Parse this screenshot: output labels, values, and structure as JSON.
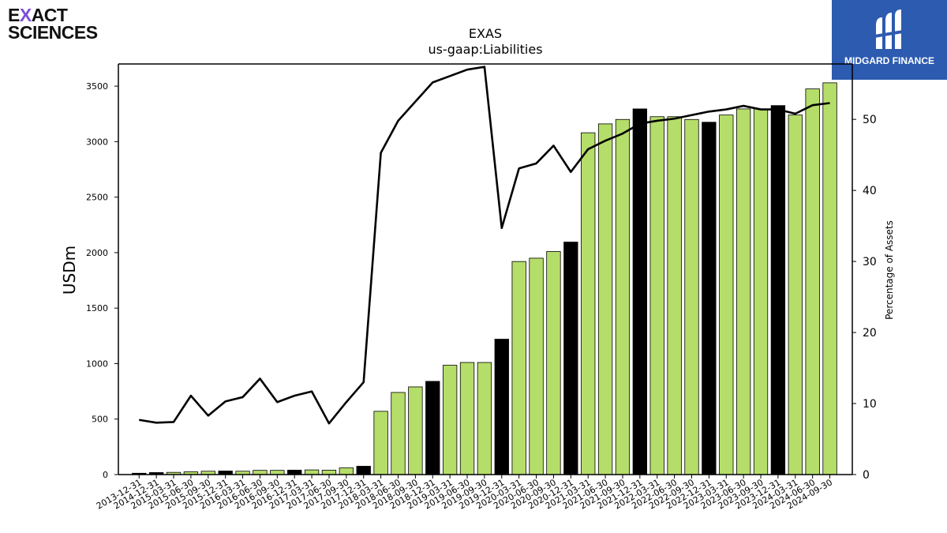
{
  "company_logo": {
    "line1_pre": "E",
    "line1_x": "X",
    "line1_post": "ACT",
    "line2": "SCIENCES"
  },
  "brand_logo": {
    "text": "MIDGARD FINANCE"
  },
  "colors": {
    "bar_green": "#b5dd6a",
    "bar_black": "#000000",
    "line": "#000000"
  },
  "chart_data": {
    "type": "bar+line",
    "title": "EXAS",
    "subtitle": "us-gaap:Liabilities",
    "ylabel": "USDm",
    "y2label": "Percentage of Assets",
    "ylim": [
      0,
      3700
    ],
    "y2lim": [
      0,
      57.8
    ],
    "yticks": [
      0,
      500,
      1000,
      1500,
      2000,
      2500,
      3000,
      3500
    ],
    "y2ticks": [
      0,
      10,
      20,
      30,
      40,
      50
    ],
    "categories": [
      "2013-12-31",
      "2014-12-31",
      "2015-03-31",
      "2015-06-30",
      "2015-09-30",
      "2015-12-31",
      "2016-03-31",
      "2016-06-30",
      "2016-09-30",
      "2016-12-31",
      "2017-03-31",
      "2017-06-30",
      "2017-09-30",
      "2017-12-31",
      "2018-03-31",
      "2018-06-30",
      "2018-09-30",
      "2018-12-31",
      "2019-03-31",
      "2019-06-30",
      "2019-09-30",
      "2019-12-31",
      "2020-03-31",
      "2020-06-30",
      "2020-09-30",
      "2020-12-31",
      "2021-03-31",
      "2021-06-30",
      "2021-09-30",
      "2021-12-31",
      "2022-03-31",
      "2022-06-30",
      "2022-09-30",
      "2022-12-31",
      "2023-03-31",
      "2023-06-30",
      "2023-09-30",
      "2023-12-31",
      "2024-03-31",
      "2024-06-30",
      "2024-09-30"
    ],
    "series": [
      {
        "kind": "bar",
        "values": [
          12,
          18,
          20,
          25,
          30,
          32,
          30,
          38,
          38,
          40,
          42,
          40,
          60,
          75,
          570,
          740,
          790,
          840,
          985,
          1010,
          1010,
          1220,
          1920,
          1950,
          2010,
          2095,
          3080,
          3160,
          3200,
          3295,
          3225,
          3225,
          3200,
          3175,
          3240,
          3295,
          3295,
          3325,
          3240,
          3475,
          3530
        ],
        "annual": [
          true,
          true,
          false,
          false,
          false,
          true,
          false,
          false,
          false,
          true,
          false,
          false,
          false,
          true,
          false,
          false,
          false,
          true,
          false,
          false,
          false,
          true,
          false,
          false,
          false,
          true,
          false,
          false,
          false,
          true,
          false,
          false,
          false,
          true,
          false,
          false,
          false,
          true,
          false,
          false,
          false
        ]
      },
      {
        "kind": "line",
        "axis": "right",
        "values": [
          7.7,
          7.3,
          7.4,
          11.1,
          8.3,
          10.3,
          10.9,
          13.5,
          10.2,
          11.1,
          11.7,
          7.2,
          10.2,
          13.0,
          45.3,
          49.8,
          52.5,
          55.2,
          56.1,
          57.0,
          57.4,
          34.7,
          43.1,
          43.8,
          46.3,
          42.6,
          45.8,
          47.0,
          48.0,
          49.4,
          49.8,
          50.1,
          50.6,
          51.1,
          51.4,
          51.9,
          51.4,
          51.4,
          50.8,
          52.0,
          52.3
        ]
      }
    ],
    "grid": false
  }
}
